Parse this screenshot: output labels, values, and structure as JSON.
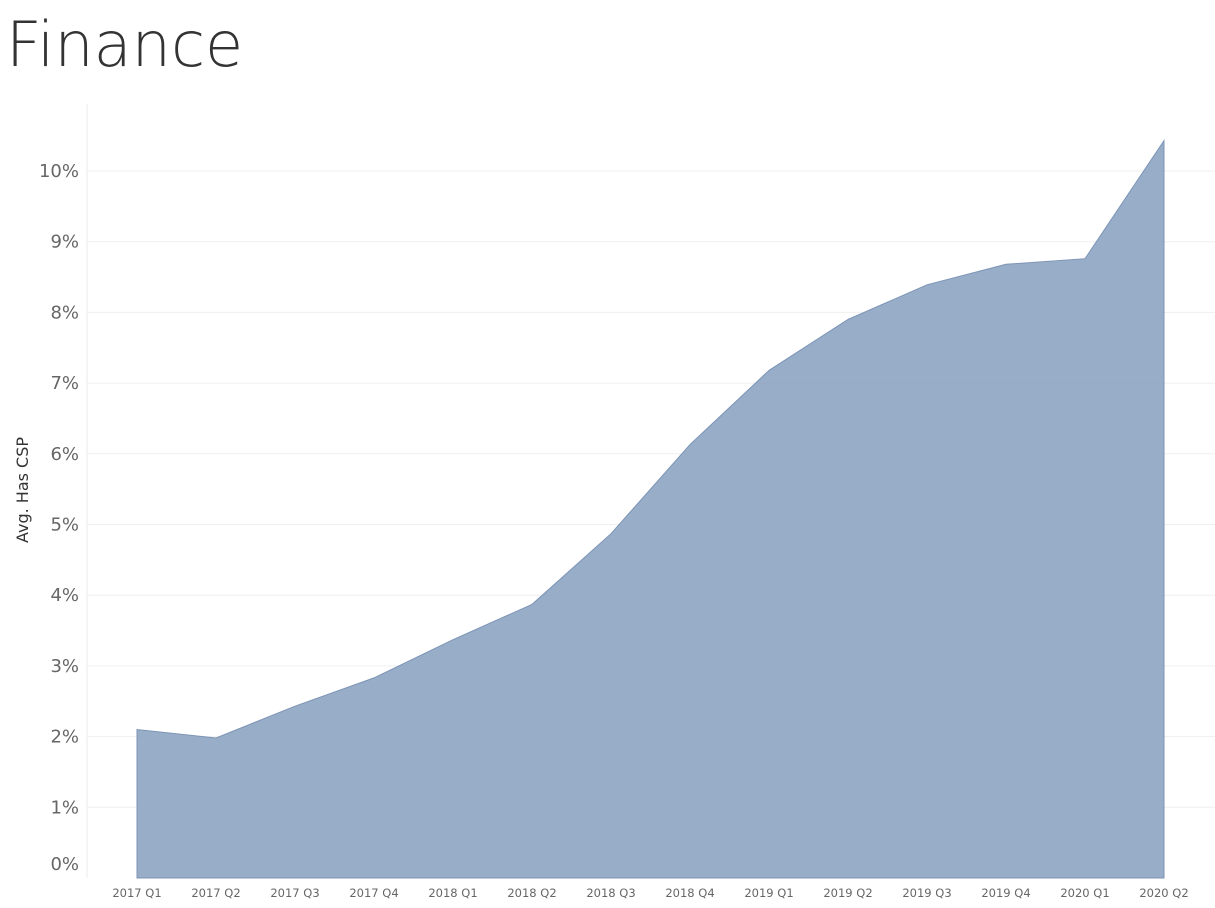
{
  "title": "Finance",
  "chart_data": {
    "type": "area",
    "title": "Finance",
    "xlabel": "",
    "ylabel": "Avg. Has CSP",
    "x": [
      "2017 Q1",
      "2017 Q2",
      "2017 Q3",
      "2017 Q4",
      "2018 Q1",
      "2018 Q2",
      "2018 Q3",
      "2018 Q4",
      "2019 Q1",
      "2019 Q2",
      "2019 Q3",
      "2019 Q4",
      "2020 Q1",
      "2020 Q2"
    ],
    "values": [
      2.1,
      1.98,
      2.43,
      2.83,
      3.37,
      3.87,
      4.87,
      6.13,
      7.18,
      7.9,
      8.39,
      8.68,
      8.76,
      10.43
    ],
    "y_unit": "%",
    "ylim": [
      0,
      11
    ],
    "y_ticks": [
      "0%",
      "1%",
      "2%",
      "3%",
      "4%",
      "5%",
      "6%",
      "7%",
      "8%",
      "9%",
      "10%"
    ],
    "grid": true,
    "legend": "none",
    "color": "#8FA6C3",
    "stroke_color": "#7C94B5"
  }
}
